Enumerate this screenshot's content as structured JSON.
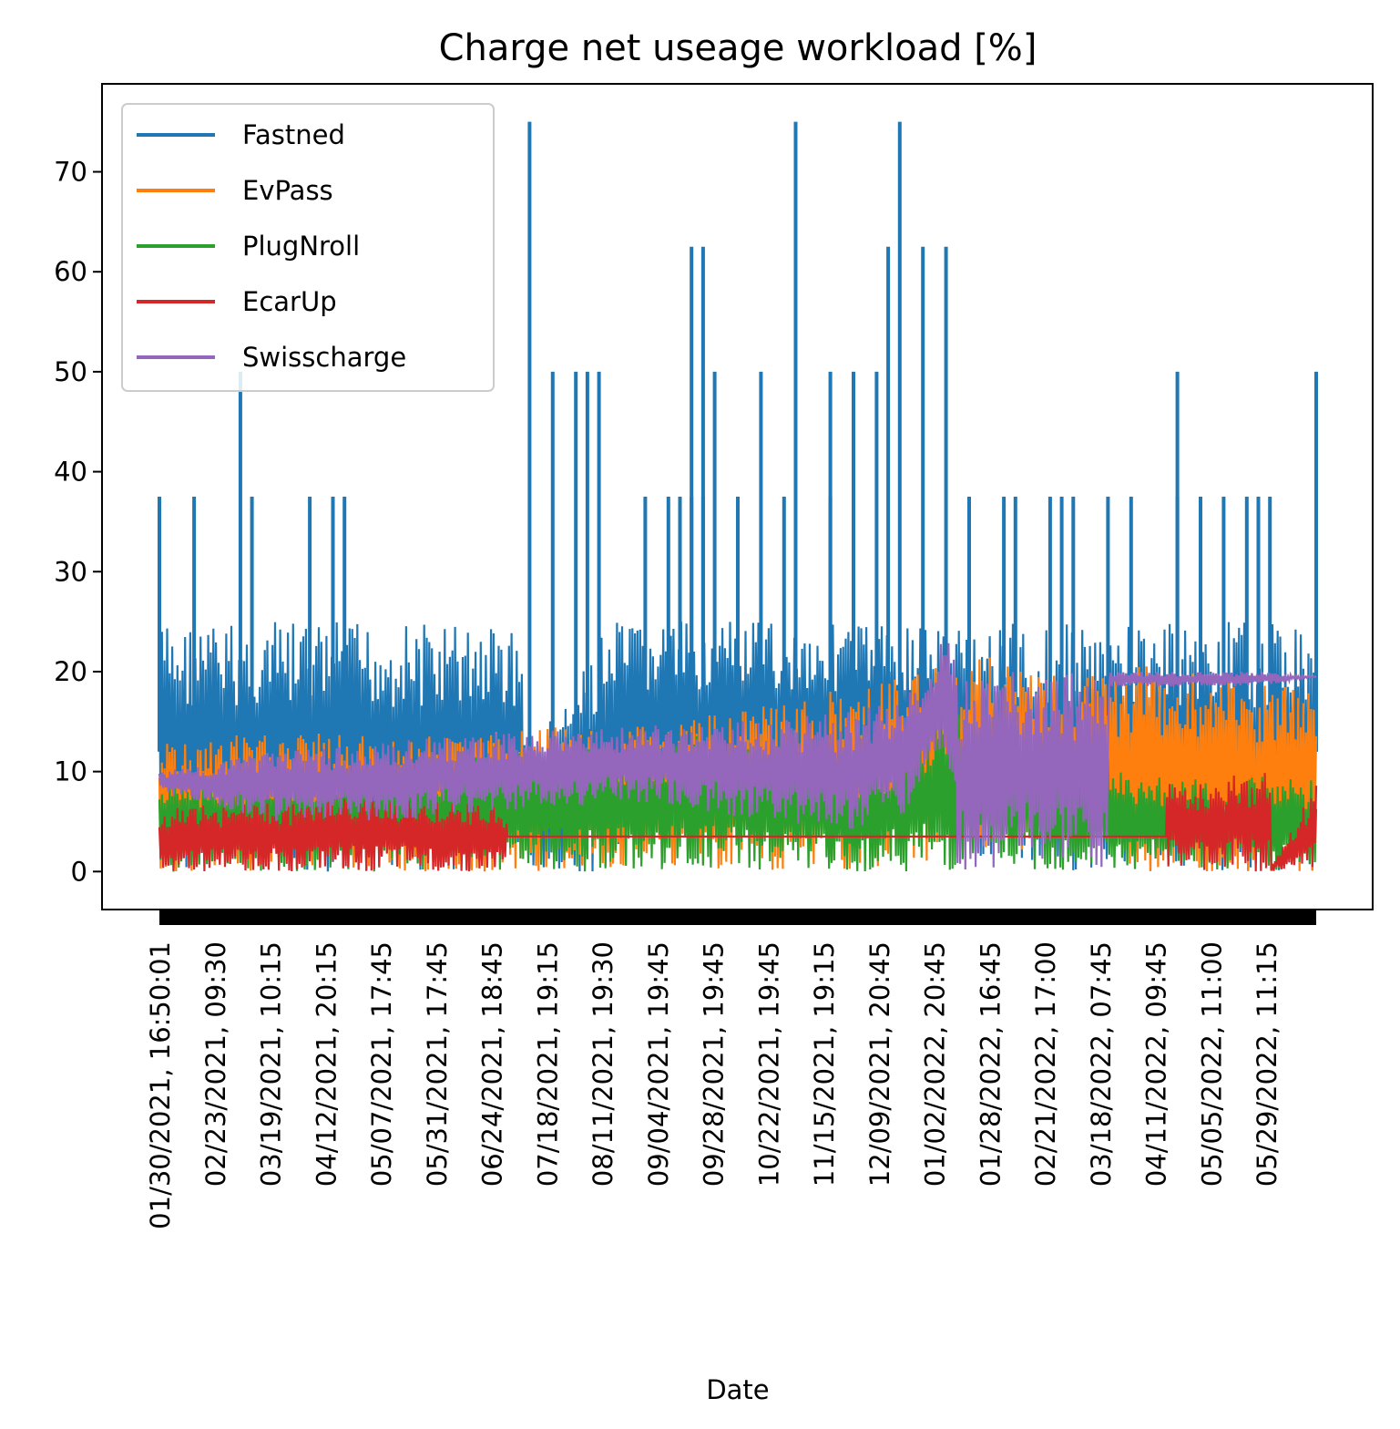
{
  "chart_data": {
    "type": "line",
    "title": "Charge net useage workload [%]",
    "xlabel": "Date",
    "ylabel": "",
    "ylim": [
      -3.8,
      78.8
    ],
    "y_ticks": [
      0,
      10,
      20,
      30,
      40,
      50,
      60,
      70
    ],
    "x_range": [
      "01/30/2021, 16:50:01",
      "06/19/2022, 00:00"
    ],
    "x_tick_labels": [
      "01/30/2021, 16:50:01",
      "02/23/2021, 09:30",
      "03/19/2021, 10:15",
      "04/12/2021, 20:15",
      "05/07/2021, 17:45",
      "05/31/2021, 17:45",
      "06/24/2021, 18:45",
      "07/18/2021, 19:15",
      "08/11/2021, 19:30",
      "09/04/2021, 19:45",
      "09/28/2021, 19:45",
      "10/22/2021, 19:45",
      "11/15/2021, 19:15",
      "12/09/2021, 20:45",
      "01/02/2022, 20:45",
      "01/28/2022, 16:45",
      "02/21/2022, 17:00",
      "03/18/2022, 07:45",
      "04/11/2022, 09:45",
      "05/05/2022, 11:00",
      "05/29/2022, 11:15"
    ],
    "legend_position": "upper left",
    "grid": false,
    "series": [
      {
        "name": "Fastned",
        "color": "#1f77b4",
        "band": {
          "low": [
            [
              0,
              0
            ],
            [
              0.39,
              0
            ],
            [
              0.44,
              5
            ],
            [
              0.67,
              5
            ],
            [
              0.72,
              0
            ],
            [
              0.97,
              0
            ]
          ],
          "high": [
            [
              0,
              25
            ],
            [
              0.31,
              25
            ],
            [
              0.32,
              12
            ],
            [
              0.39,
              25
            ],
            [
              0.55,
              25
            ],
            [
              0.6,
              25
            ],
            [
              0.97,
              25
            ]
          ]
        },
        "spikes": [
          [
            0.0,
            37.5
          ],
          [
            0.03,
            37.5
          ],
          [
            0.07,
            50
          ],
          [
            0.08,
            37.5
          ],
          [
            0.13,
            37.5
          ],
          [
            0.15,
            37.5
          ],
          [
            0.16,
            37.5
          ],
          [
            0.32,
            75
          ],
          [
            0.34,
            50
          ],
          [
            0.36,
            50
          ],
          [
            0.37,
            50
          ],
          [
            0.38,
            50
          ],
          [
            0.42,
            37.5
          ],
          [
            0.44,
            37.5
          ],
          [
            0.46,
            62.5
          ],
          [
            0.47,
            62.5
          ],
          [
            0.48,
            50
          ],
          [
            0.5,
            37.5
          ],
          [
            0.52,
            50
          ],
          [
            0.54,
            37.5
          ],
          [
            0.47,
            37.5
          ],
          [
            0.46,
            37.5
          ],
          [
            0.58,
            37.5
          ],
          [
            0.55,
            75
          ],
          [
            0.58,
            50
          ],
          [
            0.6,
            50
          ],
          [
            0.63,
            62.5
          ],
          [
            0.64,
            75
          ],
          [
            0.66,
            62.5
          ],
          [
            0.68,
            62.5
          ],
          [
            0.7,
            37.5
          ],
          [
            0.78,
            37.5
          ],
          [
            0.82,
            37.5
          ],
          [
            0.88,
            37.5
          ],
          [
            0.88,
            50
          ],
          [
            0.92,
            37.5
          ],
          [
            0.95,
            37.5
          ],
          [
            1.0,
            37.5
          ],
          [
            1.05,
            50
          ],
          [
            0.62,
            50
          ],
          [
            0.45,
            37.5
          ],
          [
            0.77,
            37.5
          ],
          [
            0.79,
            37.5
          ],
          [
            0.84,
            37.5
          ],
          [
            0.9,
            37.5
          ],
          [
            0.94,
            37.5
          ],
          [
            0.96,
            37.5
          ],
          [
            0.73,
            37.5
          ],
          [
            0.74,
            37.5
          ]
        ]
      },
      {
        "name": "EvPass",
        "color": "#ff7f0e",
        "band": {
          "low": [
            [
              0,
              0
            ],
            [
              0.3,
              0
            ],
            [
              0.6,
              0
            ],
            [
              0.8,
              3
            ],
            [
              0.84,
              0
            ],
            [
              1.0,
              0
            ]
          ],
          "high": [
            [
              0,
              13
            ],
            [
              0.1,
              14
            ],
            [
              0.2,
              13.5
            ],
            [
              0.3,
              14
            ],
            [
              0.4,
              15
            ],
            [
              0.5,
              16
            ],
            [
              0.6,
              18.5
            ],
            [
              0.66,
              20
            ],
            [
              0.7,
              22
            ],
            [
              0.76,
              20
            ],
            [
              0.82,
              19.5
            ],
            [
              0.84,
              21
            ],
            [
              1.0,
              18
            ]
          ]
        }
      },
      {
        "name": "PlugNroll",
        "color": "#2ca02c",
        "band": {
          "low": [
            [
              0,
              0
            ],
            [
              1.0,
              0
            ]
          ],
          "high": [
            [
              0,
              9.5
            ],
            [
              0.2,
              11
            ],
            [
              0.4,
              13
            ],
            [
              0.5,
              14
            ],
            [
              0.6,
              10
            ],
            [
              0.67,
              15
            ],
            [
              0.7,
              16
            ],
            [
              0.75,
              14
            ],
            [
              0.82,
              12
            ],
            [
              0.84,
              9.5
            ],
            [
              1.0,
              9.5
            ]
          ]
        }
      },
      {
        "name": "EcarUp",
        "color": "#d62728",
        "band": {
          "low": [
            [
              0,
              0
            ],
            [
              0.3,
              0
            ],
            [
              0.3,
              3.5
            ],
            [
              0.87,
              3.5
            ],
            [
              0.87,
              0
            ],
            [
              1.0,
              0
            ]
          ],
          "high": [
            [
              0,
              6.5
            ],
            [
              0.1,
              7
            ],
            [
              0.2,
              7.5
            ],
            [
              0.3,
              6.5
            ],
            [
              0.3,
              3.5
            ],
            [
              0.87,
              3.5
            ],
            [
              0.87,
              9
            ],
            [
              0.96,
              10
            ],
            [
              0.96,
              0.3
            ],
            [
              1.0,
              9
            ]
          ]
        }
      },
      {
        "name": "Swisscharge",
        "color": "#9467bd",
        "band": {
          "low": [
            [
              0,
              8
            ],
            [
              0.1,
              5
            ],
            [
              0.2,
              5
            ],
            [
              0.4,
              7
            ],
            [
              0.6,
              4
            ],
            [
              0.65,
              6
            ],
            [
              0.66,
              10
            ],
            [
              0.68,
              12
            ],
            [
              0.69,
              0
            ],
            [
              0.73,
              0
            ],
            [
              0.82,
              0
            ],
            [
              0.82,
              18.5
            ],
            [
              0.95,
              18.5
            ],
            [
              1.0,
              19.5
            ]
          ],
          "high": [
            [
              0,
              10
            ],
            [
              0.1,
              12
            ],
            [
              0.2,
              13
            ],
            [
              0.3,
              14
            ],
            [
              0.4,
              14.5
            ],
            [
              0.5,
              15
            ],
            [
              0.6,
              16
            ],
            [
              0.65,
              18
            ],
            [
              0.67,
              21
            ],
            [
              0.68,
              25
            ],
            [
              0.69,
              20
            ],
            [
              0.82,
              20
            ],
            [
              0.95,
              20
            ],
            [
              1.0,
              19.5
            ]
          ]
        }
      }
    ]
  }
}
